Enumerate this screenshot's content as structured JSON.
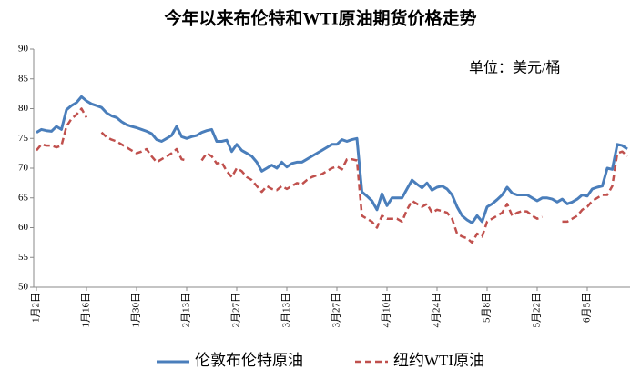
{
  "chart_data": {
    "type": "line",
    "title": "今年以来布伦特和WTI原油期货价格走势",
    "annotation": "单位：美元/桶",
    "categories": [
      "1月2日",
      null,
      null,
      null,
      null,
      null,
      null,
      null,
      null,
      null,
      "1月16日",
      null,
      null,
      null,
      null,
      null,
      null,
      null,
      null,
      null,
      "1月30日",
      null,
      null,
      null,
      null,
      null,
      null,
      null,
      null,
      null,
      "2月13日",
      null,
      null,
      null,
      null,
      null,
      null,
      null,
      null,
      null,
      "2月27日",
      null,
      null,
      null,
      null,
      null,
      null,
      null,
      null,
      null,
      "3月13日",
      null,
      null,
      null,
      null,
      null,
      null,
      null,
      null,
      null,
      "3月27日",
      null,
      null,
      null,
      null,
      null,
      null,
      null,
      null,
      null,
      "4月10日",
      null,
      null,
      null,
      null,
      null,
      null,
      null,
      null,
      null,
      "4月24日",
      null,
      null,
      null,
      null,
      null,
      null,
      null,
      null,
      null,
      "5月8日",
      null,
      null,
      null,
      null,
      null,
      null,
      null,
      null,
      null,
      "5月22日",
      null,
      null,
      null,
      null,
      null,
      null,
      null,
      null,
      null,
      "6月5日",
      null,
      null,
      null,
      null,
      null,
      null,
      null,
      null
    ],
    "series": [
      {
        "name": "伦敦布伦特原油",
        "color": "#4a7ebb",
        "dash": false,
        "values": [
          76,
          76.5,
          76.3,
          76.2,
          77,
          76.5,
          79.8,
          80.5,
          81,
          82,
          81.3,
          80.8,
          80.5,
          80.2,
          79.3,
          78.8,
          78.5,
          77.8,
          77.3,
          77,
          76.8,
          76.5,
          76.2,
          75.8,
          74.8,
          74.5,
          75,
          75.5,
          77,
          75.3,
          75,
          75.3,
          75.5,
          76,
          76.3,
          76.5,
          74.5,
          74.5,
          74.7,
          72.8,
          74,
          73,
          72.5,
          72,
          71,
          69.5,
          70,
          70.5,
          70,
          71,
          70.2,
          70.8,
          71,
          71,
          71.5,
          72,
          72.5,
          73,
          73.5,
          74,
          74,
          74.8,
          74.5,
          74.8,
          75,
          66,
          65.3,
          64.5,
          63,
          65.7,
          63.7,
          65,
          65,
          65,
          66.5,
          68,
          67.3,
          66.7,
          67.5,
          66.3,
          66.8,
          67,
          66.5,
          65.5,
          63.5,
          62,
          61.3,
          60.8,
          62,
          61,
          63.5,
          64,
          64.7,
          65.5,
          66.8,
          65.8,
          65.5,
          65.5,
          65.5,
          65,
          64.5,
          65,
          65,
          64.8,
          64.3,
          64.8,
          64,
          64.3,
          64.8,
          65.5,
          65.3,
          66.5,
          66.8,
          67,
          70,
          69.8,
          74,
          73.8,
          73.2
        ]
      },
      {
        "name": "纽约WTI原油",
        "color": "#c0504d",
        "dash": true,
        "values": [
          73,
          74,
          73.8,
          73.8,
          73.5,
          73.8,
          77,
          78.3,
          79,
          80,
          78.5,
          null,
          null,
          76,
          75.2,
          74.8,
          74.5,
          74,
          73.5,
          73,
          72.5,
          72.8,
          73.2,
          72,
          71,
          71.5,
          72,
          72.5,
          73.2,
          71.5,
          71.3,
          null,
          null,
          71.3,
          72.5,
          72,
          70.8,
          71,
          69.5,
          68.5,
          70,
          69.5,
          68.5,
          68,
          67,
          66,
          67,
          66.5,
          66.3,
          67,
          66.5,
          67,
          67.5,
          67.3,
          68,
          68.5,
          68.8,
          69,
          69.5,
          70,
          70.3,
          69.8,
          71.5,
          71.5,
          71.3,
          62,
          61.5,
          61,
          60,
          62,
          61.5,
          61.5,
          61.5,
          61,
          63,
          64.5,
          64,
          63.5,
          64,
          62.5,
          63,
          62.8,
          62.5,
          61.5,
          59,
          58.5,
          58.2,
          57.5,
          59,
          58.5,
          61,
          61.5,
          62,
          62.5,
          64,
          62,
          62.5,
          62.8,
          62.7,
          62,
          61.5,
          61.8,
          null,
          null,
          null,
          61,
          61,
          61.5,
          62,
          63,
          63.5,
          64.5,
          65,
          65.5,
          65.5,
          67,
          72.5,
          72.8,
          72
        ]
      }
    ],
    "ylim": [
      50,
      90
    ],
    "yticks": [
      50,
      55,
      60,
      65,
      70,
      75,
      80,
      85,
      90
    ],
    "grid": false,
    "legend": "bottom"
  }
}
